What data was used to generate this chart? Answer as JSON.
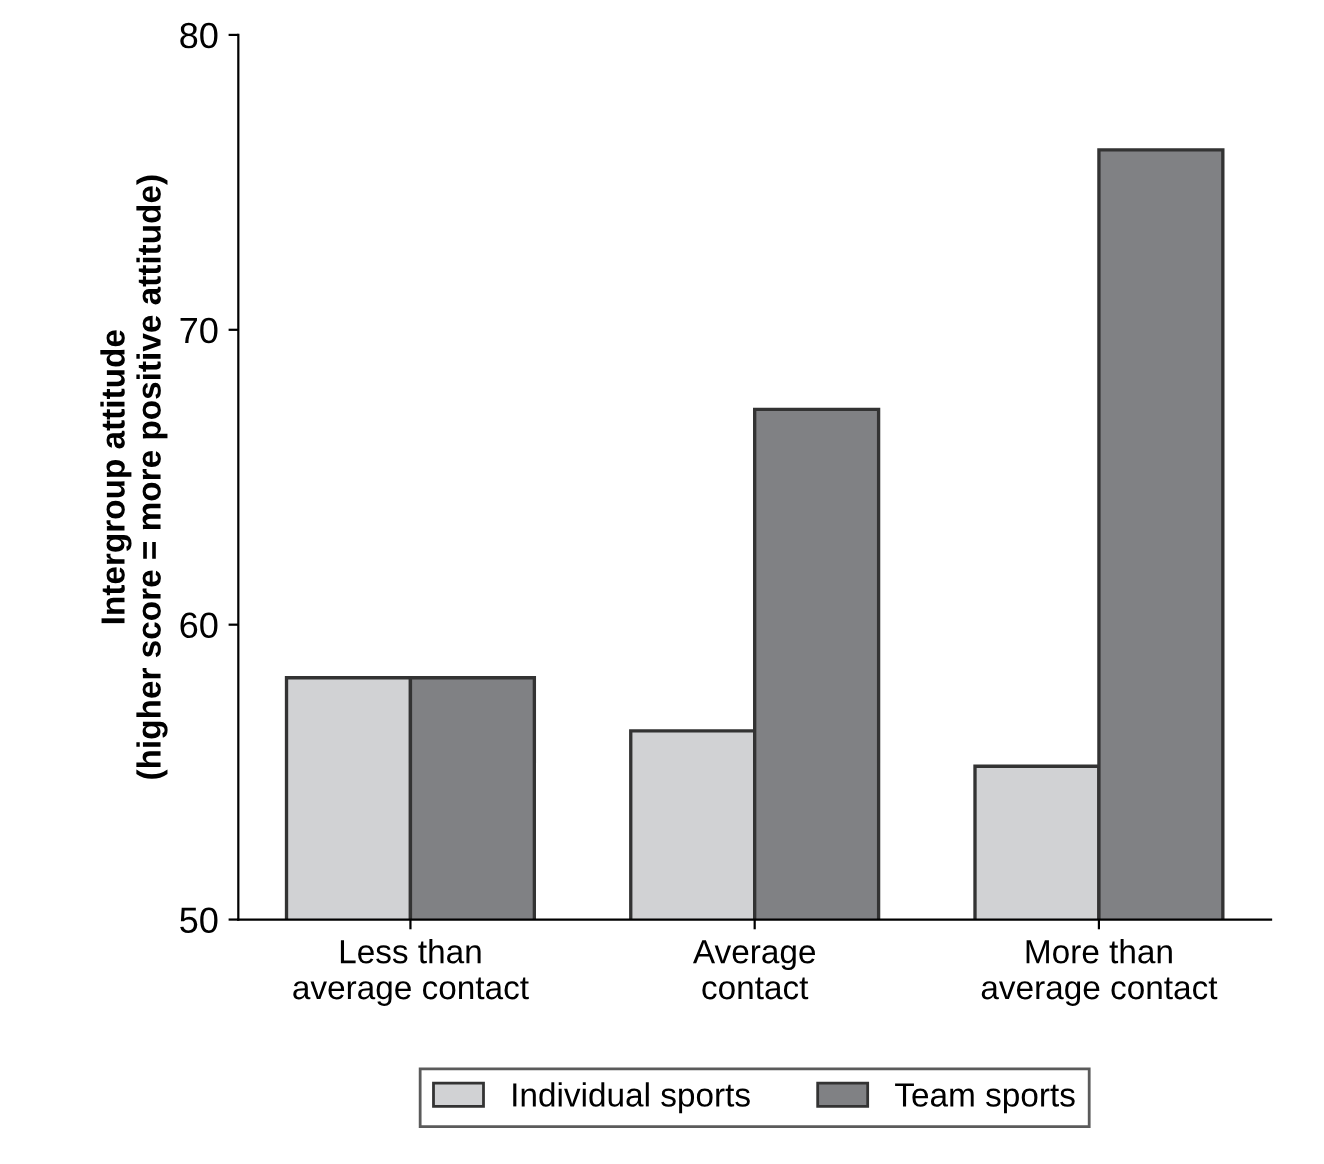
{
  "chart_data": {
    "type": "bar",
    "ylabel": "Intergroup attitude\n(higher score = more positive attitude)",
    "categories": [
      "Less than\naverage contact",
      "Average\ncontact",
      "More than\naverage contact"
    ],
    "series": [
      {
        "name": "Individual sports",
        "color": "#d1d2d4",
        "values": [
          58.2,
          56.4,
          55.2
        ]
      },
      {
        "name": "Team sports",
        "color": "#808184",
        "values": [
          58.2,
          67.3,
          76.1
        ]
      }
    ],
    "ylim": [
      50,
      80
    ],
    "yticks": [
      50,
      60,
      70,
      80
    ],
    "grid": false,
    "legend": "bottom"
  }
}
